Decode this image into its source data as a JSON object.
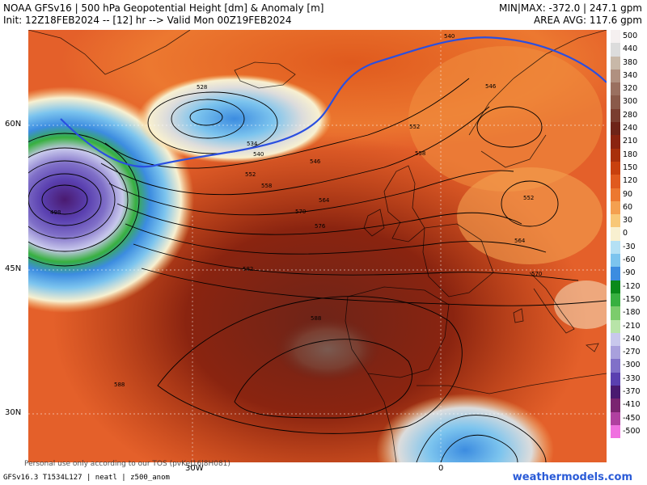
{
  "header": {
    "title": "NOAA GFSv16 | 500 hPa Geopotential Height [dm] & Anomaly [m]",
    "init": "Init: 12Z18FEB2024 -- [12] hr --> Valid Mon 00Z19FEB2024",
    "minmax": "MIN|MAX: -372.0 | 247.1 gpm",
    "area_avg": "AREA AVG: 117.6 gpm"
  },
  "axes": {
    "lat_labels": [
      "60N",
      "45N",
      "30N"
    ],
    "lon_labels": [
      "30W",
      "0"
    ]
  },
  "contour_labels": [
    "528",
    "534",
    "540",
    "546",
    "552",
    "558",
    "564",
    "570",
    "576",
    "582",
    "588",
    "498",
    "546",
    "552",
    "558",
    "552",
    "564",
    "570",
    "588",
    "540"
  ],
  "legend": {
    "values": [
      "500",
      "440",
      "380",
      "340",
      "320",
      "300",
      "280",
      "240",
      "210",
      "180",
      "150",
      "120",
      "90",
      "60",
      "30",
      "0",
      "-30",
      "-60",
      "-90",
      "-120",
      "-150",
      "-180",
      "-210",
      "-240",
      "-270",
      "-300",
      "-330",
      "-370",
      "-410",
      "-450",
      "-500"
    ],
    "colors": [
      "#f5f0f0",
      "#dcdcdc",
      "#c8b8a8",
      "#b09080",
      "#9a7060",
      "#8a5a4a",
      "#7a3e30",
      "#6e2418",
      "#8a2410",
      "#a8300c",
      "#c8400e",
      "#e05a1e",
      "#ec7830",
      "#f4a050",
      "#f8c878",
      "#f8f0d0",
      "#b4e0f4",
      "#7cc4ee",
      "#3c8ce0",
      "#0a8a1a",
      "#38b040",
      "#7ccc6c",
      "#b8e4a8",
      "#c8c8ec",
      "#a8a0dc",
      "#8070c8",
      "#5a40b0",
      "#4a1a70",
      "#7a2470",
      "#b040a0",
      "#f070e0"
    ]
  },
  "footer": {
    "disclaimer": "Personal use only according to our TOS (pvKeJ16l8H081)",
    "model_info": "GFSv16.3 T1534L127 | neatl | z500_anom",
    "site": "weathermodels.com"
  }
}
